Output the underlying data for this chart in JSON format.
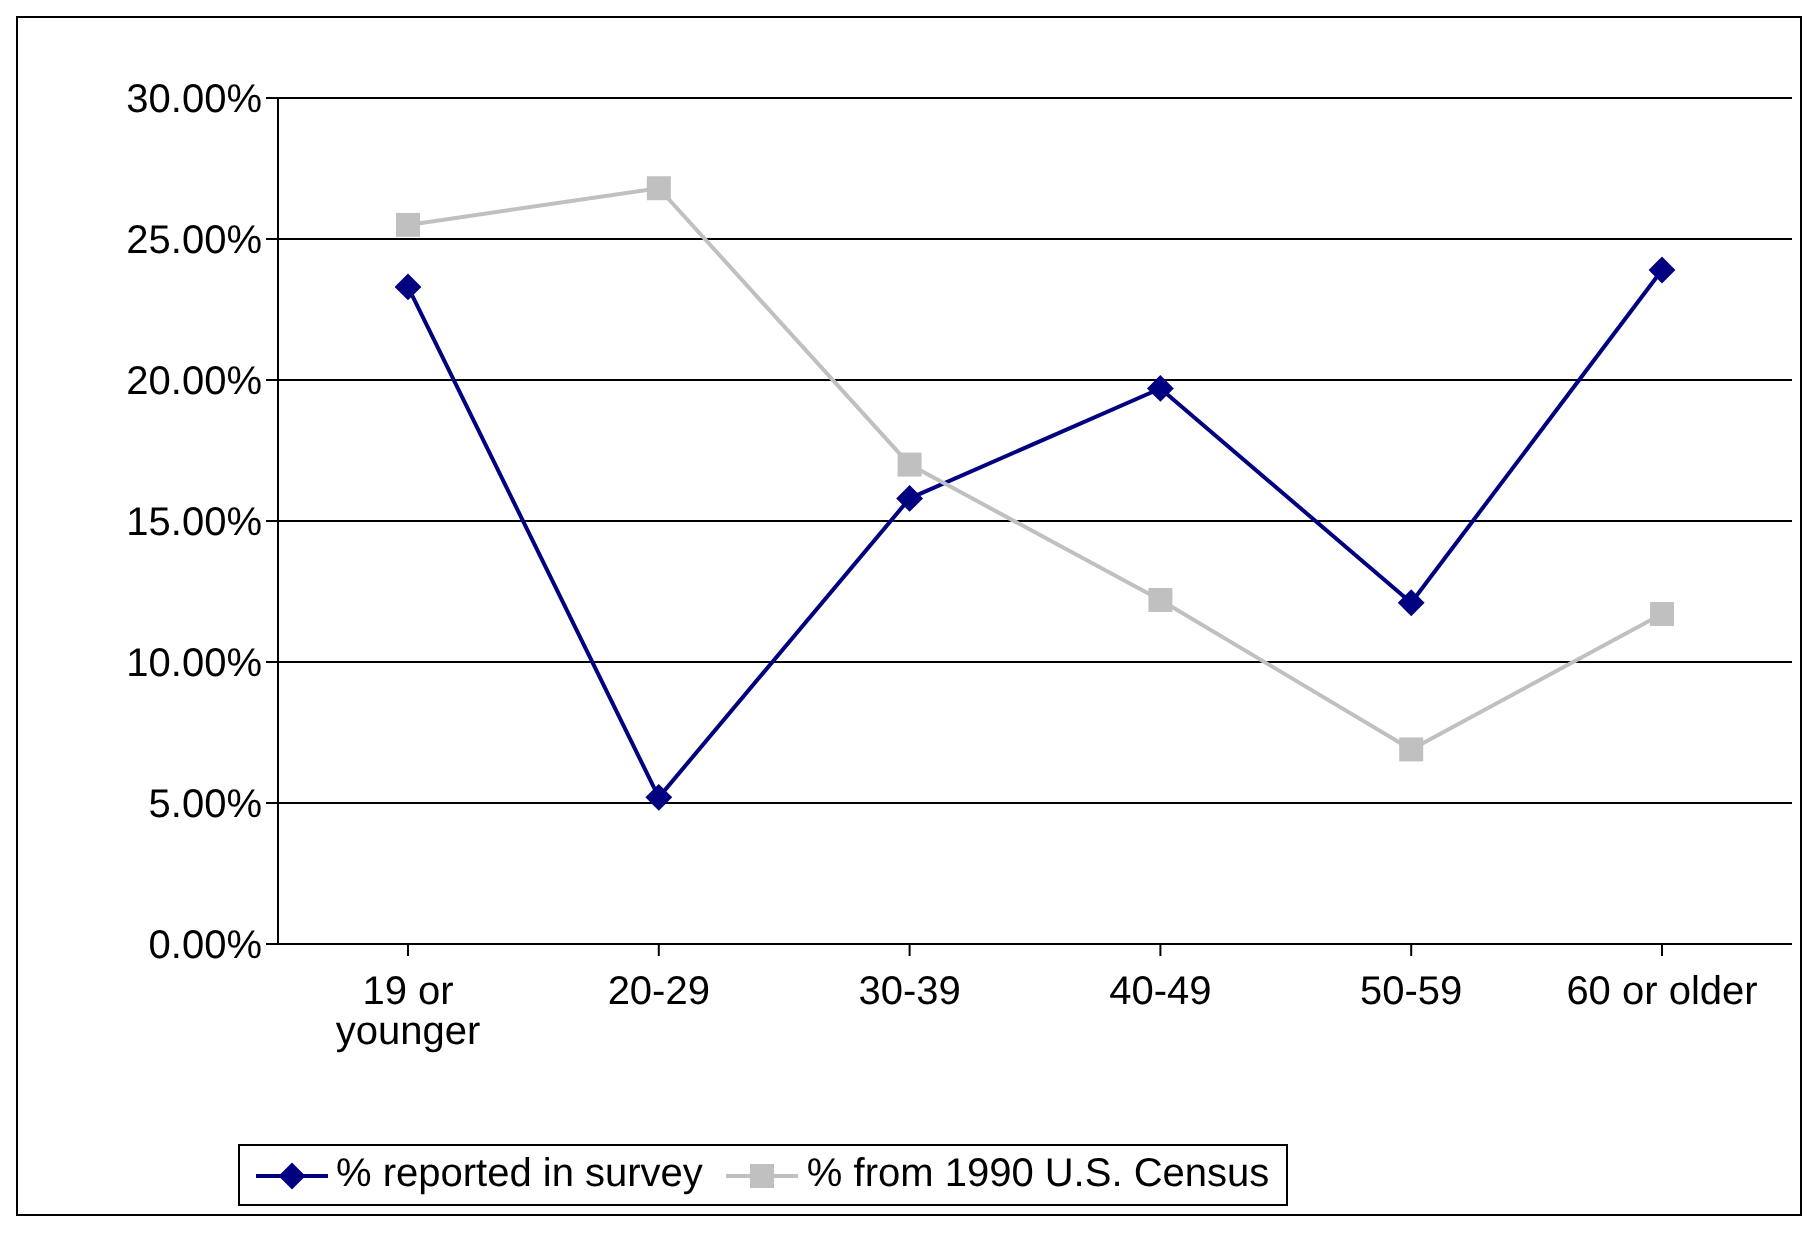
{
  "chart_data": {
    "type": "line",
    "categories": [
      "19 or younger",
      "20-29",
      "30-39",
      "40-49",
      "50-59",
      "60 or older"
    ],
    "series": [
      {
        "name": "% reported in survey",
        "color": "#000080",
        "marker": "diamond",
        "values": [
          23.3,
          5.2,
          15.8,
          19.7,
          12.1,
          23.9
        ]
      },
      {
        "name": "% from 1990 U.S. Census",
        "color": "#c0c0c0",
        "marker": "square",
        "values": [
          25.5,
          26.8,
          17.0,
          12.2,
          6.9,
          11.7
        ]
      }
    ],
    "ylim": [
      0,
      30
    ],
    "yticks": [
      {
        "value": 0,
        "label": "0.00%"
      },
      {
        "value": 5,
        "label": "5.00%"
      },
      {
        "value": 10,
        "label": "10.00%"
      },
      {
        "value": 15,
        "label": "15.00%"
      },
      {
        "value": 20,
        "label": "20.00%"
      },
      {
        "value": 25,
        "label": "25.00%"
      },
      {
        "value": 30,
        "label": "30.00%"
      }
    ],
    "grid": "y",
    "legend": "bottom",
    "line_style": "solid"
  }
}
